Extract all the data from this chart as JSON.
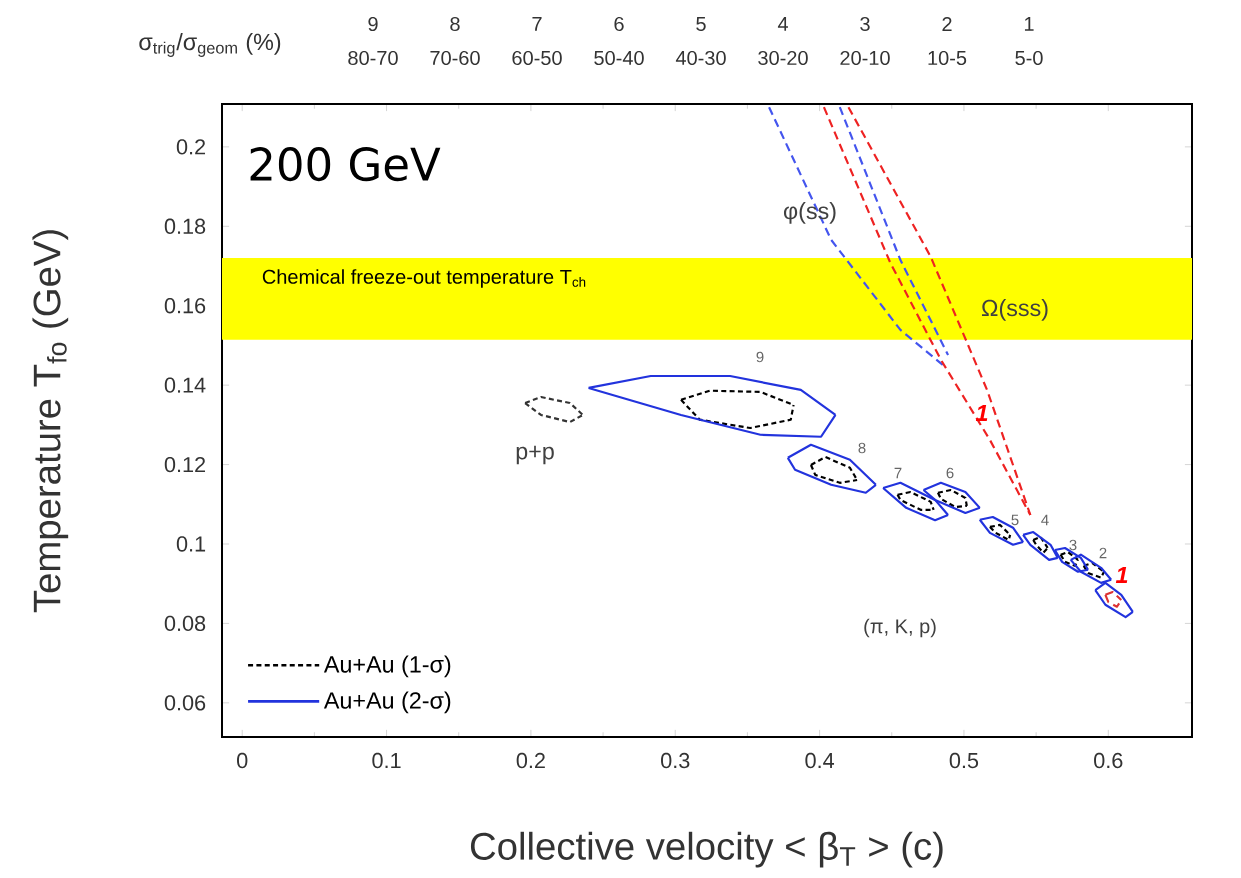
{
  "chart_data": {
    "type": "line",
    "xlabel": "Collective velocity < β$_{T}$ > (c)",
    "ylabel": "Temperature T$_{fo}$ (GeV)",
    "xlim": [
      -0.014,
      0.658
    ],
    "ylim": [
      0.0514,
      0.2108
    ],
    "xticks": [
      0,
      0.1,
      0.2,
      0.3,
      0.4,
      0.5,
      0.6
    ],
    "yticks": [
      0.06,
      0.08,
      0.1,
      0.12,
      0.14,
      0.16,
      0.18,
      0.2
    ],
    "legend": "bottom left",
    "bands": [
      {
        "axis": "y",
        "from": 0.1514,
        "to": 0.172,
        "label": "Chemical freeze-out temperature T$_{ch}$",
        "color": "#ffff00"
      }
    ],
    "series": [
      {
        "name": "Au+Au (1-σ)",
        "color": "#000000",
        "line_style": "dotted",
        "x": [
          0.304,
          0.324,
          0.359,
          0.382
        ],
        "values": [
          0.1363,
          0.1386,
          0.1383,
          0.135
        ]
      },
      {
        "color": "#000000",
        "line_style": "dotted",
        "x": [
          0.304,
          0.317,
          0.352,
          0.38,
          0.382
        ],
        "values": [
          0.1363,
          0.1313,
          0.1292,
          0.1313,
          0.135
        ]
      },
      {
        "color": "#000000",
        "line_style": "dotted",
        "x": [
          0.394,
          0.404,
          0.421,
          0.426
        ],
        "values": [
          0.1199,
          0.1219,
          0.1192,
          0.1161
        ]
      },
      {
        "color": "#000000",
        "line_style": "dotted",
        "x": [
          0.394,
          0.397,
          0.414,
          0.426
        ],
        "values": [
          0.1199,
          0.1174,
          0.1154,
          0.1161
        ]
      },
      {
        "color": "#000000",
        "line_style": "dotted",
        "x": [
          0.454,
          0.463,
          0.477,
          0.479
        ],
        "values": [
          0.1124,
          0.1131,
          0.1106,
          0.1086
        ]
      },
      {
        "color": "#000000",
        "line_style": "dotted",
        "x": [
          0.454,
          0.456,
          0.47,
          0.479
        ],
        "values": [
          0.1124,
          0.1111,
          0.1086,
          0.1086
        ]
      },
      {
        "color": "#000000",
        "line_style": "dotted",
        "x": [
          0.482,
          0.491,
          0.501,
          0.502
        ],
        "values": [
          0.1129,
          0.1136,
          0.1116,
          0.1096
        ]
      },
      {
        "color": "#000000",
        "line_style": "dotted",
        "x": [
          0.482,
          0.484,
          0.494,
          0.502
        ],
        "values": [
          0.1129,
          0.1114,
          0.1093,
          0.1096
        ]
      },
      {
        "color": "#000000",
        "line_style": "dotted",
        "x": [
          0.518,
          0.525,
          0.532
        ],
        "values": [
          0.1043,
          0.1048,
          0.1023
        ]
      },
      {
        "color": "#000000",
        "line_style": "dotted",
        "x": [
          0.518,
          0.522,
          0.531,
          0.532
        ],
        "values": [
          0.1043,
          0.1028,
          0.101,
          0.1023
        ]
      },
      {
        "color": "#000000",
        "line_style": "dotted",
        "x": [
          0.548,
          0.553,
          0.558
        ],
        "values": [
          0.101,
          0.1018,
          0.099
        ]
      },
      {
        "color": "#000000",
        "line_style": "dotted",
        "x": [
          0.548,
          0.55,
          0.555,
          0.558
        ],
        "values": [
          0.101,
          0.0998,
          0.0978,
          0.099
        ]
      },
      {
        "color": "#000000",
        "line_style": "dotted",
        "x": [
          0.567,
          0.572,
          0.579
        ],
        "values": [
          0.0973,
          0.098,
          0.096
        ]
      },
      {
        "color": "#000000",
        "line_style": "dotted",
        "x": [
          0.567,
          0.57,
          0.577,
          0.579
        ],
        "values": [
          0.0973,
          0.0955,
          0.0945,
          0.096
        ]
      },
      {
        "color": "#000000",
        "line_style": "dotted",
        "x": [
          0.583,
          0.589,
          0.597
        ],
        "values": [
          0.0945,
          0.0952,
          0.093
        ]
      },
      {
        "color": "#000000",
        "line_style": "dotted",
        "x": [
          0.583,
          0.586,
          0.595,
          0.597
        ],
        "values": [
          0.0945,
          0.0927,
          0.0915,
          0.093
        ]
      },
      {
        "name": "Au+Au (2-σ)",
        "color": "#2233dd",
        "line_style": "solid",
        "x": [
          0.24,
          0.283,
          0.338,
          0.387,
          0.411
        ],
        "values": [
          0.1393,
          0.1423,
          0.1423,
          0.1388,
          0.1325
        ]
      },
      {
        "color": "#2233dd",
        "line_style": "solid",
        "x": [
          0.24,
          0.304,
          0.359,
          0.401,
          0.411
        ],
        "values": [
          0.1393,
          0.1325,
          0.1275,
          0.127,
          0.1325
        ]
      },
      {
        "color": "#2233dd",
        "line_style": "solid",
        "x": [
          0.378,
          0.394,
          0.421,
          0.439
        ],
        "values": [
          0.1217,
          0.125,
          0.1212,
          0.1149
        ]
      },
      {
        "color": "#2233dd",
        "line_style": "solid",
        "x": [
          0.378,
          0.383,
          0.408,
          0.432,
          0.439
        ],
        "values": [
          0.1217,
          0.1187,
          0.1149,
          0.1129,
          0.1149
        ]
      },
      {
        "color": "#2233dd",
        "line_style": "solid",
        "x": [
          0.444,
          0.456,
          0.48,
          0.489
        ],
        "values": [
          0.1141,
          0.1154,
          0.1111,
          0.1073
        ]
      },
      {
        "color": "#2233dd",
        "line_style": "solid",
        "x": [
          0.444,
          0.46,
          0.48,
          0.489
        ],
        "values": [
          0.1141,
          0.1091,
          0.106,
          0.1073
        ]
      },
      {
        "color": "#2233dd",
        "line_style": "solid",
        "x": [
          0.472,
          0.484,
          0.501,
          0.511
        ],
        "values": [
          0.1136,
          0.1154,
          0.1131,
          0.1091
        ]
      },
      {
        "color": "#2233dd",
        "line_style": "solid",
        "x": [
          0.472,
          0.48,
          0.501,
          0.511
        ],
        "values": [
          0.1136,
          0.1111,
          0.1078,
          0.1091
        ]
      },
      {
        "color": "#2233dd",
        "line_style": "solid",
        "x": [
          0.511,
          0.52,
          0.534,
          0.541
        ],
        "values": [
          0.1061,
          0.1068,
          0.1041,
          0.1005
        ]
      },
      {
        "color": "#2233dd",
        "line_style": "solid",
        "x": [
          0.511,
          0.518,
          0.534,
          0.541
        ],
        "values": [
          0.1061,
          0.1028,
          0.0998,
          0.1005
        ]
      },
      {
        "color": "#2233dd",
        "line_style": "solid",
        "x": [
          0.541,
          0.548,
          0.56,
          0.565
        ],
        "values": [
          0.1023,
          0.103,
          0.0998,
          0.0965
        ]
      },
      {
        "color": "#2233dd",
        "line_style": "solid",
        "x": [
          0.541,
          0.546,
          0.559,
          0.565
        ],
        "values": [
          0.1023,
          0.0998,
          0.096,
          0.0965
        ]
      },
      {
        "color": "#2233dd",
        "line_style": "solid",
        "x": [
          0.563,
          0.57,
          0.581,
          0.586
        ],
        "values": [
          0.0985,
          0.099,
          0.0965,
          0.0935
        ]
      },
      {
        "color": "#2233dd",
        "line_style": "solid",
        "x": [
          0.563,
          0.568,
          0.579,
          0.586
        ],
        "values": [
          0.0985,
          0.0955,
          0.093,
          0.0935
        ]
      },
      {
        "color": "#2233dd",
        "line_style": "solid",
        "x": [
          0.574,
          0.581,
          0.595,
          0.602
        ],
        "values": [
          0.096,
          0.0973,
          0.094,
          0.091
        ]
      },
      {
        "color": "#2233dd",
        "line_style": "solid",
        "x": [
          0.574,
          0.581,
          0.595,
          0.602
        ],
        "values": [
          0.096,
          0.093,
          0.0902,
          0.091
        ]
      },
      {
        "color": "#2233dd",
        "line_style": "solid",
        "x": [
          0.591,
          0.598,
          0.609,
          0.617
        ],
        "values": [
          0.0884,
          0.0902,
          0.0872,
          0.0829
        ]
      },
      {
        "color": "#2233dd",
        "line_style": "solid",
        "x": [
          0.591,
          0.598,
          0.612,
          0.617
        ],
        "values": [
          0.0884,
          0.0847,
          0.0816,
          0.0829
        ]
      },
      {
        "color": "#333333",
        "line_style": "dotted",
        "x": [
          0.196,
          0.207,
          0.227,
          0.236
        ],
        "values": [
          0.1355,
          0.137,
          0.1355,
          0.1325
        ]
      },
      {
        "color": "#333333",
        "line_style": "dotted",
        "x": [
          0.196,
          0.207,
          0.227,
          0.236
        ],
        "values": [
          0.1355,
          0.1325,
          0.1307,
          0.1325
        ]
      },
      {
        "color": "#dd3333",
        "line_style": "dashed",
        "x": [
          0.598,
          0.603,
          0.609
        ],
        "values": [
          0.0872,
          0.0879,
          0.0859
        ]
      },
      {
        "color": "#dd3333",
        "line_style": "dashed",
        "x": [
          0.598,
          0.6,
          0.606,
          0.609
        ],
        "values": [
          0.0872,
          0.0854,
          0.0842,
          0.0859
        ]
      },
      {
        "color": "#4455ee",
        "line_style": "dashed",
        "x": [
          0.365,
          0.408,
          0.456,
          0.487
        ],
        "values": [
          0.21,
          0.1766,
          0.1539,
          0.1446
        ]
      },
      {
        "color": "#4455ee",
        "line_style": "dashed",
        "x": [
          0.414,
          0.456,
          0.489
        ],
        "values": [
          0.21,
          0.1715,
          0.1476
        ]
      },
      {
        "color": "#ee2222",
        "line_style": "dashed",
        "x": [
          0.403,
          0.449,
          0.484,
          0.518,
          0.546
        ],
        "values": [
          0.21,
          0.1708,
          0.1464,
          0.1262,
          0.1073
        ]
      },
      {
        "color": "#ee2222",
        "line_style": "dashed",
        "x": [
          0.42,
          0.477,
          0.516,
          0.546
        ],
        "values": [
          0.21,
          0.1723,
          0.1388,
          0.1073
        ]
      }
    ],
    "annotations": [
      "200 GeV",
      "σ$_{trig}$/σ$_{geom}$ (%)",
      "9",
      "80-70",
      "8",
      "70-60",
      "7",
      "60-50",
      "6",
      "50-40",
      "5",
      "40-30",
      "4",
      "30-20",
      "3",
      "20-10",
      "2",
      "10-5",
      "1",
      "5-0",
      "φ(ss)",
      "Ω(sss)",
      "p+p",
      "(π, K, p)",
      "9",
      "8",
      "7",
      "6",
      "5",
      "4",
      "3",
      "2",
      "1",
      "1"
    ]
  }
}
